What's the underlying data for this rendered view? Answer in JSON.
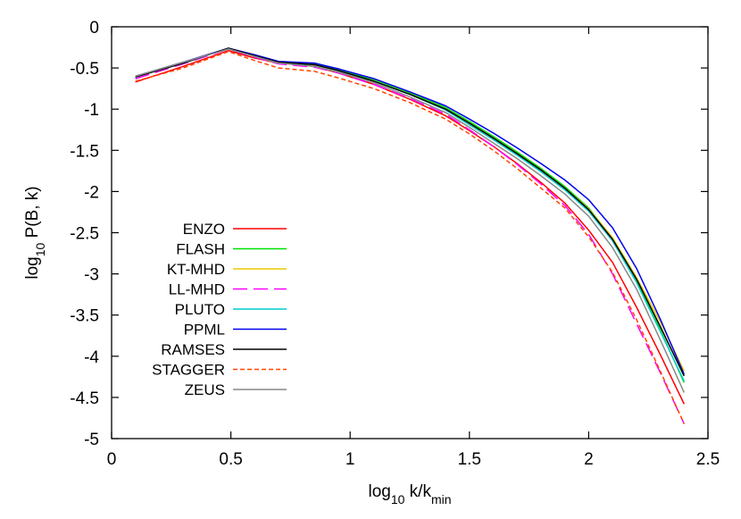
{
  "chart_data": {
    "type": "line",
    "title": "",
    "xlabel": {
      "prefix": "log",
      "sub": "10",
      "rest": " k/k",
      "sub2": "min"
    },
    "ylabel": {
      "prefix": "log",
      "sub": "10",
      "rest": " P(B, k)"
    },
    "xlim": [
      0,
      2.5
    ],
    "ylim": [
      -5,
      0
    ],
    "xticks": [
      0,
      0.5,
      1,
      1.5,
      2,
      2.5
    ],
    "xtick_labels": [
      "0",
      "0.5",
      "1",
      "1.5",
      "2",
      "2.5"
    ],
    "yticks": [
      0,
      -0.5,
      -1,
      -1.5,
      -2,
      -2.5,
      -3,
      -3.5,
      -4,
      -4.5,
      -5
    ],
    "ytick_labels": [
      "0",
      "-0.5",
      "-1",
      "-1.5",
      "-2",
      "-2.5",
      "-3",
      "-3.5",
      "-4",
      "-4.5",
      "-5"
    ],
    "grid": false,
    "legend_position": "bottom-left",
    "x": [
      0.1,
      0.3,
      0.49,
      0.6,
      0.7,
      0.85,
      0.95,
      1.1,
      1.25,
      1.4,
      1.5,
      1.6,
      1.7,
      1.8,
      1.9,
      2.0,
      2.1,
      2.2,
      2.3,
      2.4
    ],
    "series": [
      {
        "name": "ENZO",
        "color": "#ff0000",
        "dash": "",
        "values": [
          -0.67,
          -0.48,
          -0.29,
          -0.38,
          -0.44,
          -0.48,
          -0.56,
          -0.7,
          -0.88,
          -1.08,
          -1.26,
          -1.45,
          -1.66,
          -1.89,
          -2.14,
          -2.47,
          -2.86,
          -3.4,
          -3.98,
          -4.58
        ]
      },
      {
        "name": "FLASH",
        "color": "#00e000",
        "dash": "",
        "values": [
          -0.61,
          -0.44,
          -0.26,
          -0.35,
          -0.43,
          -0.45,
          -0.52,
          -0.64,
          -0.8,
          -0.98,
          -1.15,
          -1.33,
          -1.52,
          -1.72,
          -1.94,
          -2.2,
          -2.57,
          -3.08,
          -3.68,
          -4.32
        ]
      },
      {
        "name": "KT-MHD",
        "color": "#e8c800",
        "dash": "",
        "values": [
          -0.61,
          -0.44,
          -0.26,
          -0.35,
          -0.43,
          -0.46,
          -0.53,
          -0.66,
          -0.82,
          -1.0,
          -1.18,
          -1.36,
          -1.54,
          -1.74,
          -1.96,
          -2.21,
          -2.56,
          -3.04,
          -3.58,
          -4.18
        ]
      },
      {
        "name": "LL-MHD",
        "color": "#ff00ff",
        "dash": "16,7",
        "values": [
          -0.63,
          -0.45,
          -0.27,
          -0.37,
          -0.45,
          -0.49,
          -0.56,
          -0.7,
          -0.87,
          -1.06,
          -1.25,
          -1.45,
          -1.67,
          -1.91,
          -2.17,
          -2.52,
          -3.0,
          -3.6,
          -4.2,
          -4.82
        ]
      },
      {
        "name": "PLUTO",
        "color": "#00cccc",
        "dash": "",
        "values": [
          -0.61,
          -0.44,
          -0.26,
          -0.36,
          -0.44,
          -0.46,
          -0.53,
          -0.66,
          -0.82,
          -1.01,
          -1.19,
          -1.37,
          -1.56,
          -1.76,
          -1.98,
          -2.24,
          -2.6,
          -3.1,
          -3.7,
          -4.3
        ]
      },
      {
        "name": "PPML",
        "color": "#0000ee",
        "dash": "",
        "values": [
          -0.6,
          -0.43,
          -0.26,
          -0.34,
          -0.42,
          -0.44,
          -0.51,
          -0.63,
          -0.79,
          -0.96,
          -1.12,
          -1.29,
          -1.47,
          -1.66,
          -1.86,
          -2.1,
          -2.44,
          -2.93,
          -3.55,
          -4.22
        ]
      },
      {
        "name": "RAMSES",
        "color": "#000000",
        "dash": "",
        "values": [
          -0.61,
          -0.44,
          -0.26,
          -0.35,
          -0.43,
          -0.46,
          -0.53,
          -0.66,
          -0.82,
          -1.0,
          -1.17,
          -1.35,
          -1.54,
          -1.74,
          -1.96,
          -2.22,
          -2.58,
          -3.06,
          -3.64,
          -4.24
        ]
      },
      {
        "name": "STAGGER",
        "color": "#ff4400",
        "dash": "5,3",
        "values": [
          -0.66,
          -0.5,
          -0.3,
          -0.41,
          -0.5,
          -0.54,
          -0.62,
          -0.75,
          -0.92,
          -1.12,
          -1.3,
          -1.5,
          -1.72,
          -1.96,
          -2.2,
          -2.55,
          -2.98,
          -3.55,
          -4.18,
          -4.82
        ]
      },
      {
        "name": "ZEUS",
        "color": "#888888",
        "dash": "",
        "values": [
          -0.6,
          -0.43,
          -0.27,
          -0.36,
          -0.44,
          -0.48,
          -0.55,
          -0.68,
          -0.85,
          -1.04,
          -1.22,
          -1.41,
          -1.6,
          -1.81,
          -2.03,
          -2.3,
          -2.68,
          -3.18,
          -3.8,
          -4.44
        ]
      }
    ]
  }
}
